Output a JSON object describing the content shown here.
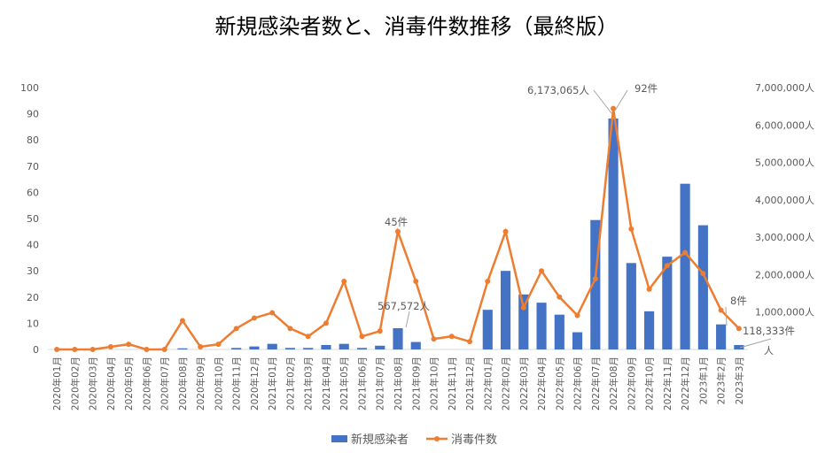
{
  "chart_data": {
    "type": "bar+line",
    "title": "新規感染者数と、消毒件数推移（最終版）",
    "categories": [
      "2020年01月",
      "2020年02月",
      "2020年03月",
      "2020年04月",
      "2020年05月",
      "2020年06月",
      "2020年07月",
      "2020年08月",
      "2020年09月",
      "2020年10月",
      "2020年11月",
      "2020年12月",
      "2021年01月",
      "2021年02月",
      "2021年03月",
      "2021年04月",
      "2021年05月",
      "2021年06月",
      "2021年07月",
      "2021年08月",
      "2021年09月",
      "2021年10月",
      "2021年11月",
      "2021年12月",
      "2022年01月",
      "2022年02月",
      "2022年03月",
      "2022年04月",
      "2022年05月",
      "2022年06月",
      "2022年07月",
      "2022年08月",
      "2022年09月",
      "2022年10月",
      "2022年11月",
      "2022年12月",
      "2023年1月",
      "2023年2月",
      "2023年3月"
    ],
    "series": [
      {
        "name": "新規感染者",
        "type": "bar",
        "axis": "right",
        "color": "#4472C4",
        "values": [
          0,
          0,
          0,
          0,
          0,
          0,
          0,
          30000,
          0,
          0,
          40000,
          80000,
          150000,
          40000,
          40000,
          120000,
          150000,
          40000,
          100000,
          567572,
          200000,
          0,
          0,
          0,
          1060000,
          2100000,
          1470000,
          1250000,
          930000,
          460000,
          3460000,
          6173065,
          2310000,
          1020000,
          2480000,
          4430000,
          3320000,
          670000,
          118333
        ]
      },
      {
        "name": "消毒件数",
        "type": "line",
        "axis": "left",
        "color": "#ED7D31",
        "values": [
          0,
          0,
          0,
          1,
          2,
          0,
          0,
          11,
          1,
          2,
          8,
          12,
          14,
          8,
          5,
          10,
          26,
          5,
          7,
          45,
          26,
          4,
          5,
          3,
          26,
          45,
          16,
          30,
          20,
          13,
          27,
          92,
          46,
          23,
          32,
          37,
          29,
          15,
          8
        ]
      }
    ],
    "left_axis": {
      "range": [
        0,
        100
      ],
      "ticks": [
        "0",
        "10",
        "20",
        "30",
        "40",
        "50",
        "60",
        "70",
        "80",
        "90",
        "100"
      ]
    },
    "right_axis": {
      "range": [
        0,
        7000000
      ],
      "ticks": [
        "人",
        "1,000,000人",
        "2,000,000人",
        "3,000,000人",
        "4,000,000人",
        "5,000,000人",
        "6,000,000人",
        "7,000,000人"
      ]
    },
    "annotations": [
      {
        "text": "45件",
        "series": "消毒件数",
        "index": 19
      },
      {
        "text": "567,572人",
        "series": "新規感染者",
        "index": 19
      },
      {
        "text": "6,173,065人",
        "series": "新規感染者",
        "index": 31
      },
      {
        "text": "92件",
        "series": "消毒件数",
        "index": 31
      },
      {
        "text": "8件",
        "series": "消毒件数",
        "index": 38
      },
      {
        "text": "118,333件",
        "series": "新規感染者",
        "index": 38
      }
    ],
    "legend": {
      "placement": "bottom",
      "items": [
        "新規感染者",
        "消毒件数"
      ]
    },
    "grid": false
  }
}
